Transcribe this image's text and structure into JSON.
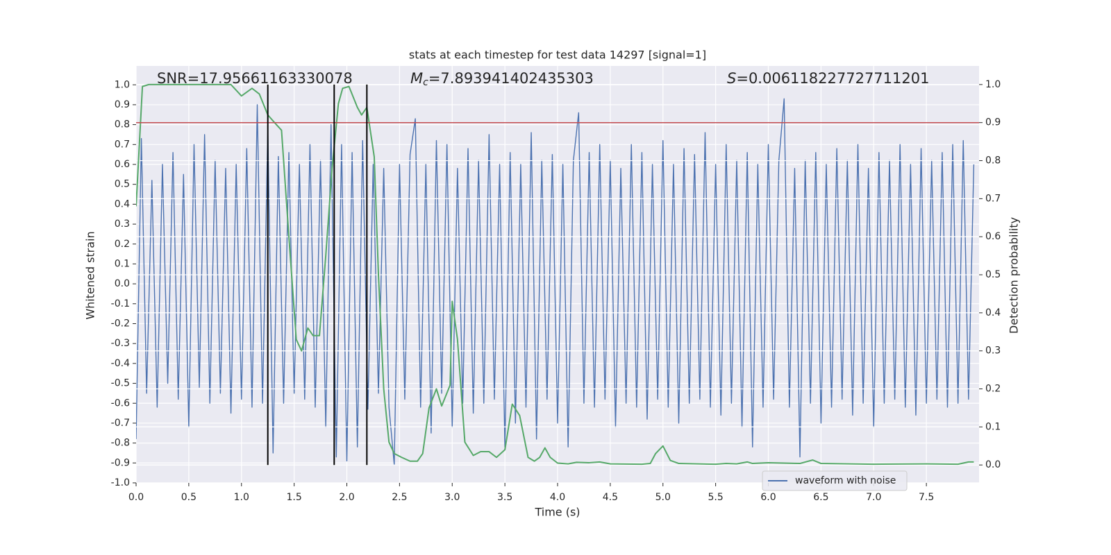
{
  "chart_data": {
    "type": "line",
    "title": "stats at each timestep for test data 14297 [signal=1]",
    "xlabel": "Time (s)",
    "ylabel": "Whitened strain",
    "y2label": "Detection probability",
    "annotations": [
      {
        "text": "SNR=17.95661163330078"
      },
      {
        "symbol": "M",
        "subscript": "c",
        "text": "=7.893941402435303"
      },
      {
        "symbol": "S",
        "text": "=0.006118227727711201"
      }
    ],
    "xlim": [
      0,
      8
    ],
    "ylim": [
      -1.0,
      1.095
    ],
    "y2lim": [
      -0.047,
      1.049
    ],
    "xticks": [
      {
        "value": 0,
        "label": "0.0"
      },
      0.5,
      {
        "value": 1,
        "label": "1.0"
      },
      1.5,
      {
        "value": 2,
        "label": "2.0"
      },
      2.5,
      {
        "value": 3,
        "label": "3.0"
      },
      3.5,
      {
        "value": 4,
        "label": "4.0"
      },
      4.5,
      {
        "value": 5,
        "label": "5.0"
      },
      5.5,
      {
        "value": 6,
        "label": "6.0"
      },
      6.5,
      {
        "value": 7,
        "label": "7.0"
      },
      7.5
    ],
    "yticks": [
      {
        "value": -1,
        "label": "-1.0"
      },
      -0.9,
      -0.8,
      -0.7,
      -0.6,
      -0.5,
      -0.4,
      -0.3,
      -0.2,
      -0.1,
      {
        "value": 0,
        "label": "0.0"
      },
      0.1,
      0.2,
      0.3,
      0.4,
      0.5,
      0.6,
      0.7,
      0.8,
      0.9,
      {
        "value": 1,
        "label": "1.0"
      }
    ],
    "y2ticks": [
      {
        "value": 0,
        "label": "0.0"
      },
      0.1,
      0.2,
      0.3,
      0.4,
      0.5,
      0.6,
      0.7,
      0.8,
      0.9,
      {
        "value": 1,
        "label": "1.0"
      }
    ],
    "grid": true,
    "legend": "lower right",
    "series": [
      {
        "name": "waveform with noise",
        "color": "#4c72b0",
        "x": [
          0,
          0.05,
          0.1,
          0.15,
          0.2,
          0.25,
          0.3,
          0.35,
          0.4,
          0.45,
          0.5,
          0.55,
          0.6,
          0.65,
          0.7,
          0.75,
          0.8,
          0.85,
          0.9,
          0.95,
          1,
          1.05,
          1.1,
          1.15,
          1.2,
          1.25,
          1.3,
          1.35,
          1.4,
          1.45,
          1.5,
          1.55,
          1.6,
          1.65,
          1.7,
          1.75,
          1.8,
          1.85,
          1.9,
          1.95,
          2,
          2.05,
          2.1,
          2.15,
          2.2,
          2.25,
          2.3,
          2.35,
          2.4,
          2.45,
          2.5,
          2.55,
          2.6,
          2.65,
          2.7,
          2.75,
          2.8,
          2.85,
          2.9,
          2.95,
          3,
          3.05,
          3.1,
          3.15,
          3.2,
          3.25,
          3.3,
          3.35,
          3.4,
          3.45,
          3.5,
          3.55,
          3.6,
          3.65,
          3.7,
          3.75,
          3.8,
          3.85,
          3.9,
          3.95,
          4,
          4.05,
          4.1,
          4.15,
          4.2,
          4.25,
          4.3,
          4.35,
          4.4,
          4.45,
          4.5,
          4.55,
          4.6,
          4.65,
          4.7,
          4.75,
          4.8,
          4.85,
          4.9,
          4.95,
          5,
          5.05,
          5.1,
          5.15,
          5.2,
          5.25,
          5.3,
          5.35,
          5.4,
          5.45,
          5.5,
          5.55,
          5.6,
          5.65,
          5.7,
          5.75,
          5.8,
          5.85,
          5.9,
          5.95,
          6,
          6.05,
          6.1,
          6.15,
          6.2,
          6.25,
          6.3,
          6.35,
          6.4,
          6.45,
          6.5,
          6.55,
          6.6,
          6.65,
          6.7,
          6.75,
          6.8,
          6.85,
          6.9,
          6.95,
          7,
          7.05,
          7.1,
          7.15,
          7.2,
          7.25,
          7.3,
          7.35,
          7.4,
          7.45,
          7.5,
          7.55,
          7.6,
          7.65,
          7.7,
          7.75,
          7.8,
          7.85,
          7.9,
          7.95
        ],
        "values": [
          -0.78,
          0.73,
          -0.55,
          0.52,
          -0.62,
          0.6,
          -0.5,
          0.66,
          -0.58,
          0.55,
          -0.72,
          0.7,
          -0.52,
          0.75,
          -0.6,
          0.62,
          -0.55,
          0.58,
          -0.65,
          0.6,
          -0.58,
          0.68,
          -0.62,
          0.9,
          -0.6,
          0.78,
          -0.85,
          0.64,
          -0.6,
          0.66,
          -0.55,
          0.6,
          -0.58,
          0.7,
          -0.62,
          0.62,
          -0.72,
          0.8,
          -0.87,
          0.7,
          -0.89,
          0.66,
          -0.82,
          0.72,
          -0.63,
          0.6,
          -0.55,
          0.58,
          -0.62,
          -0.91,
          0.6,
          -0.58,
          0.65,
          0.83,
          -0.62,
          0.6,
          -0.75,
          0.72,
          -0.55,
          0.7,
          -0.72,
          0.58,
          -0.6,
          0.68,
          -0.65,
          0.62,
          -0.6,
          0.75,
          -0.58,
          0.6,
          -0.82,
          0.66,
          -0.7,
          0.6,
          -0.62,
          0.76,
          -0.78,
          0.62,
          -0.58,
          0.65,
          -0.7,
          0.6,
          -0.82,
          0.62,
          0.86,
          -0.6,
          0.66,
          -0.62,
          0.7,
          -0.58,
          0.62,
          -0.72,
          0.58,
          -0.6,
          0.7,
          -0.62,
          0.66,
          -0.68,
          0.6,
          -0.58,
          0.72,
          -0.62,
          0.6,
          -0.7,
          0.68,
          -0.6,
          0.65,
          -0.58,
          0.76,
          -0.62,
          0.6,
          -0.66,
          0.7,
          -0.6,
          0.62,
          -0.72,
          0.66,
          -0.82,
          0.6,
          -0.62,
          0.7,
          -0.58,
          0.62,
          0.93,
          -0.62,
          0.58,
          -0.87,
          0.62,
          -0.6,
          0.66,
          -0.7,
          0.6,
          -0.62,
          0.68,
          -0.58,
          0.62,
          -0.66,
          0.7,
          -0.6,
          0.58,
          -0.72,
          0.66,
          -0.6,
          0.62,
          -0.58,
          0.7,
          -0.62,
          0.6,
          -0.66,
          0.68,
          -0.6,
          0.62,
          -0.58,
          0.66,
          -0.62,
          0.7,
          -0.6,
          0.72,
          -0.58,
          0.6
        ]
      },
      {
        "name": "Detection probability",
        "color": "#55a868",
        "axis": "y2",
        "x": [
          0,
          0.06,
          0.12,
          0.5,
          0.9,
          1,
          1.1,
          1.17,
          1.25,
          1.33,
          1.38,
          1.45,
          1.52,
          1.57,
          1.63,
          1.68,
          1.74,
          1.8,
          1.86,
          1.92,
          1.96,
          2.02,
          2.1,
          2.14,
          2.19,
          2.26,
          2.3,
          2.35,
          2.4,
          2.45,
          2.52,
          2.6,
          2.67,
          2.72,
          2.78,
          2.85,
          2.9,
          2.98,
          3,
          3.05,
          3.12,
          3.2,
          3.27,
          3.35,
          3.42,
          3.5,
          3.57,
          3.64,
          3.72,
          3.78,
          3.83,
          3.88,
          3.93,
          4,
          4.1,
          4.18,
          4.3,
          4.4,
          4.5,
          4.8,
          4.88,
          4.93,
          5,
          5.07,
          5.15,
          5.5,
          5.6,
          5.7,
          5.8,
          5.85,
          6,
          6.3,
          6.42,
          6.5,
          7,
          7.5,
          7.8,
          7.9,
          7.95
        ],
        "values": [
          0.68,
          0.995,
          1,
          1,
          1,
          0.97,
          0.99,
          0.975,
          0.92,
          0.895,
          0.88,
          0.6,
          0.33,
          0.3,
          0.36,
          0.34,
          0.34,
          0.55,
          0.78,
          0.95,
          0.99,
          0.995,
          0.94,
          0.92,
          0.94,
          0.81,
          0.5,
          0.2,
          0.06,
          0.03,
          0.02,
          0.01,
          0.01,
          0.03,
          0.15,
          0.2,
          0.155,
          0.21,
          0.43,
          0.33,
          0.06,
          0.025,
          0.035,
          0.035,
          0.02,
          0.04,
          0.16,
          0.13,
          0.02,
          0.01,
          0.02,
          0.045,
          0.02,
          0.005,
          0.003,
          0.007,
          0.006,
          0.008,
          0.003,
          0.002,
          0.004,
          0.03,
          0.05,
          0.012,
          0.004,
          0.002,
          0.004,
          0.003,
          0.008,
          0.004,
          0.006,
          0.004,
          0.013,
          0.004,
          0.002,
          0.003,
          0.002,
          0.008,
          0.008
        ]
      }
    ],
    "threshold": {
      "value": 0.9,
      "axis": "y2",
      "color": "#c44e52"
    },
    "vlines": {
      "x": [
        1.25,
        1.88,
        2.19
      ],
      "ymin": 0,
      "ymax": 1,
      "axis": "y2",
      "color": "#000000"
    }
  }
}
